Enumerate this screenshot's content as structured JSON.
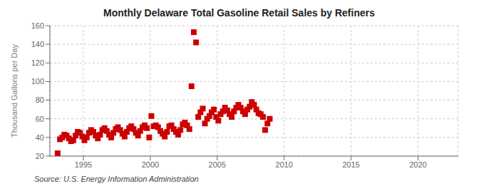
{
  "chart_data": {
    "type": "scatter",
    "title": "Monthly Delaware Total Gasoline Retail Sales by Refiners",
    "ylabel": "Thousand Gallons per Day",
    "annotations": [
      "Source: U.S. Energy Information Administration"
    ],
    "color": "#cc0000",
    "marker": "square",
    "grid": true,
    "xlim": [
      1992.5,
      2023
    ],
    "ylim": [
      20,
      160
    ],
    "xticks": [
      1995,
      2000,
      2005,
      2010,
      2015,
      2020
    ],
    "yticks": [
      20,
      40,
      60,
      80,
      100,
      120,
      140,
      160
    ],
    "x": [
      1993.08,
      1993.25,
      1993.42,
      1993.58,
      1993.75,
      1993.92,
      1994.08,
      1994.25,
      1994.42,
      1994.58,
      1994.75,
      1994.92,
      1995.08,
      1995.25,
      1995.42,
      1995.58,
      1995.75,
      1995.92,
      1996.08,
      1996.25,
      1996.42,
      1996.58,
      1996.75,
      1996.92,
      1997.08,
      1997.25,
      1997.42,
      1997.58,
      1997.75,
      1997.92,
      1998.08,
      1998.25,
      1998.42,
      1998.58,
      1998.75,
      1998.92,
      1999.08,
      1999.25,
      1999.42,
      1999.58,
      1999.75,
      1999.92,
      2000.08,
      2000.25,
      2000.42,
      2000.58,
      2000.75,
      2000.92,
      2001.08,
      2001.25,
      2001.42,
      2001.58,
      2001.75,
      2001.92,
      2002.08,
      2002.25,
      2002.42,
      2002.58,
      2002.75,
      2002.92,
      2003.08,
      2003.25,
      2003.42,
      2003.58,
      2003.75,
      2003.92,
      2004.08,
      2004.25,
      2004.42,
      2004.58,
      2004.75,
      2004.92,
      2005.08,
      2005.25,
      2005.42,
      2005.58,
      2005.75,
      2005.92,
      2006.08,
      2006.25,
      2006.42,
      2006.58,
      2006.75,
      2006.92,
      2007.08,
      2007.25,
      2007.42,
      2007.58,
      2007.75,
      2007.92,
      2008.08,
      2008.25,
      2008.42,
      2008.58,
      2008.75,
      2008.92
    ],
    "values": [
      23,
      38,
      40,
      43,
      42,
      39,
      36,
      37,
      42,
      46,
      45,
      41,
      37,
      40,
      45,
      48,
      46,
      42,
      39,
      43,
      48,
      50,
      47,
      43,
      40,
      45,
      49,
      51,
      48,
      44,
      41,
      46,
      50,
      52,
      49,
      45,
      42,
      47,
      51,
      53,
      50,
      40,
      63,
      52,
      53,
      51,
      47,
      44,
      41,
      46,
      52,
      53,
      49,
      46,
      43,
      48,
      54,
      56,
      53,
      49,
      95,
      153,
      142,
      62,
      67,
      71,
      55,
      60,
      63,
      67,
      70,
      62,
      58,
      65,
      68,
      72,
      69,
      65,
      62,
      68,
      72,
      75,
      72,
      68,
      65,
      70,
      73,
      78,
      75,
      70,
      66,
      65,
      62,
      48,
      55,
      60
    ]
  }
}
